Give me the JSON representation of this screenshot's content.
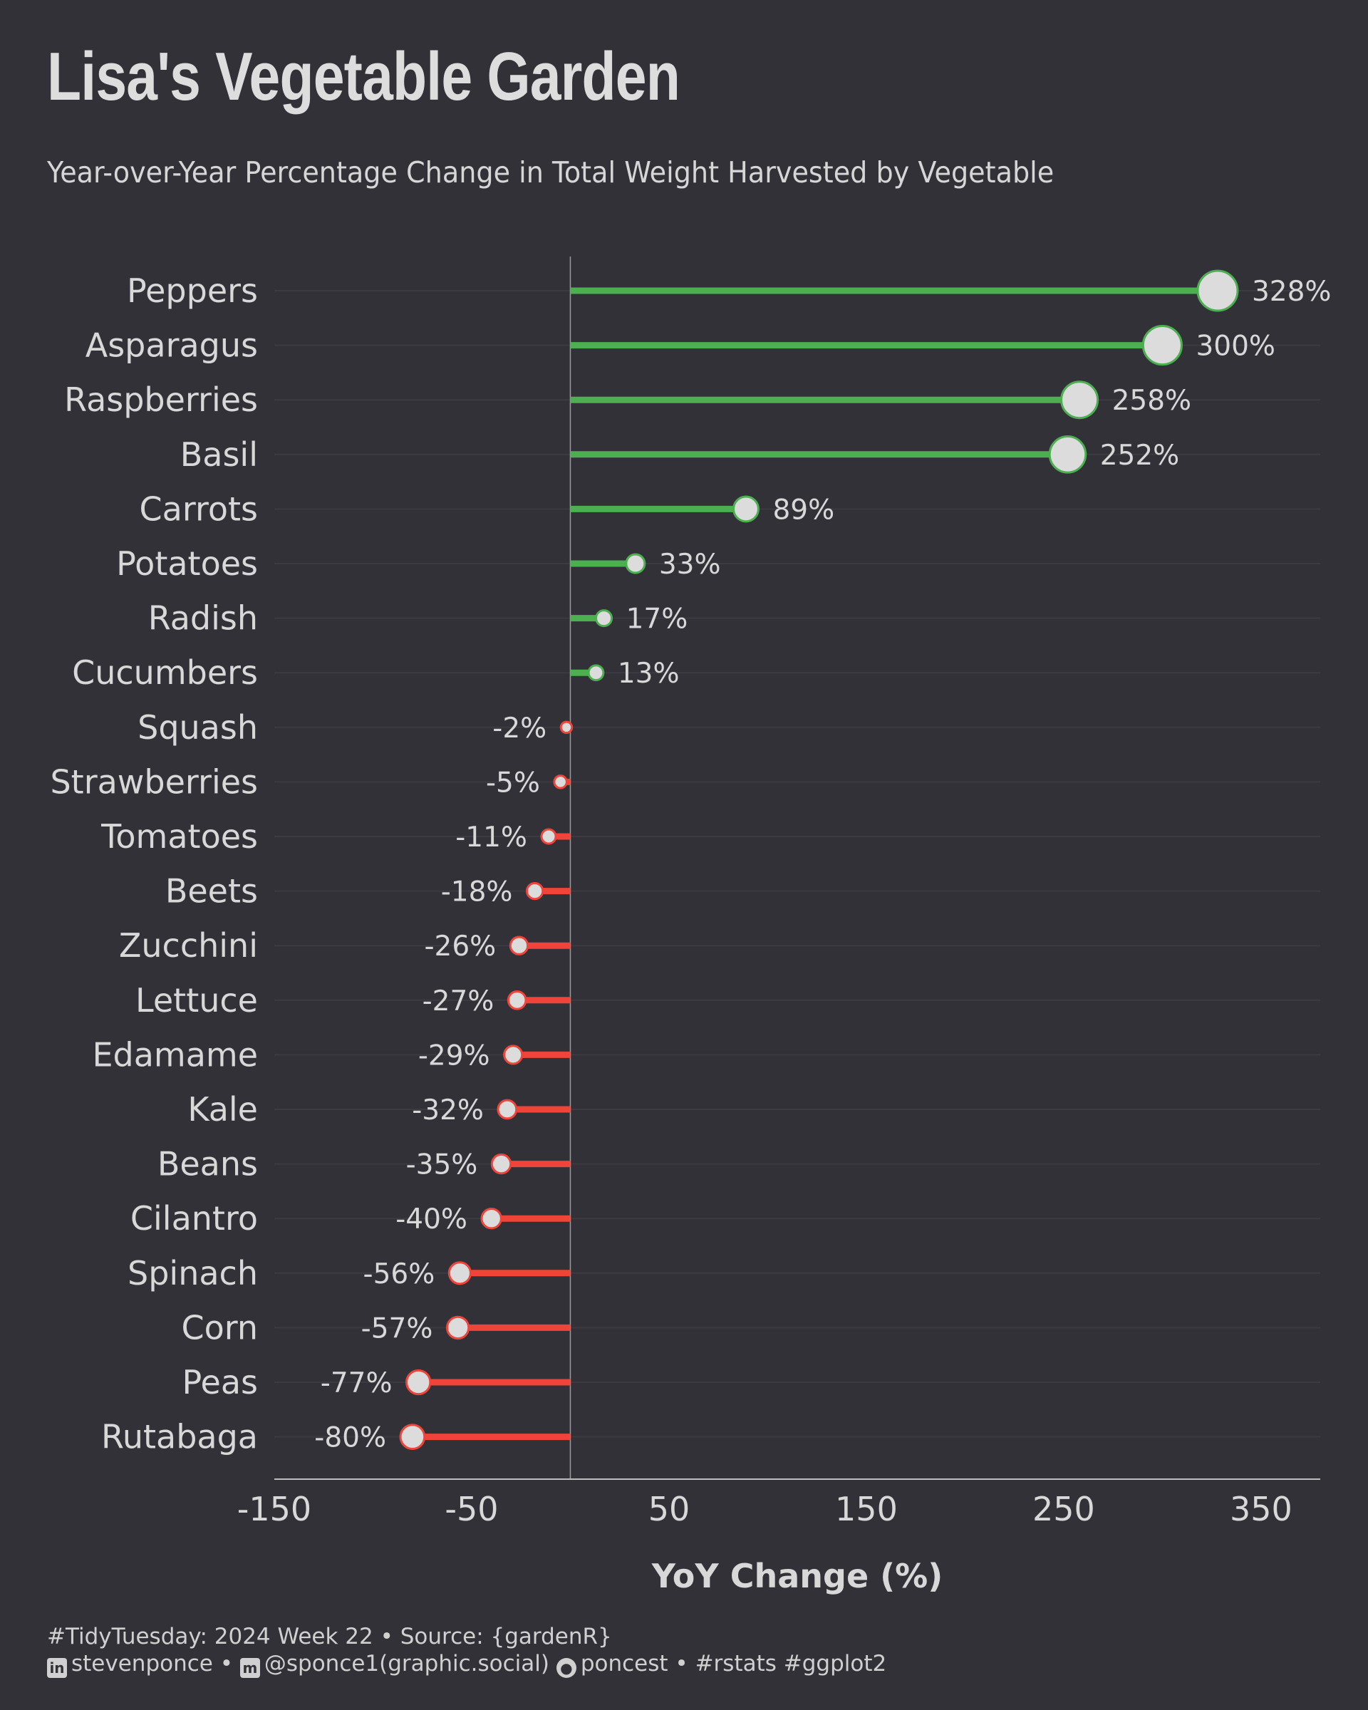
{
  "title": "Lisa's Vegetable Garden",
  "subtitle": "Year-over-Year Percentage Change in Total Weight Harvested by Vegetable",
  "footer": {
    "line1": "#TidyTuesday: 2024 Week 22 • Source: {gardenR}",
    "linkedin_handle": "stevenponce",
    "mastodon_handle": "@sponce1(graphic.social)",
    "github_handle": "poncest",
    "tags": "#rstats #ggplot2"
  },
  "colors": {
    "background": "#323137",
    "positive": "#4caf50",
    "negative": "#f0443a",
    "point_fill": "#dcdcdc",
    "text": "#d8d8d8"
  },
  "chart_data": {
    "type": "lollipop",
    "title": "Lisa's Vegetable Garden",
    "subtitle": "Year-over-Year Percentage Change in Total Weight Harvested by Vegetable",
    "xlabel": "YoY Change (%)",
    "ylabel": "",
    "xlim": [
      -150,
      380
    ],
    "xticks": [
      -150,
      -50,
      50,
      150,
      250,
      350
    ],
    "grid": "horizontal-major",
    "orientation": "horizontal",
    "categories": [
      "Peppers",
      "Asparagus",
      "Raspberries",
      "Basil",
      "Carrots",
      "Potatoes",
      "Radish",
      "Cucumbers",
      "Squash",
      "Strawberries",
      "Tomatoes",
      "Beets",
      "Zucchini",
      "Lettuce",
      "Edamame",
      "Kale",
      "Beans",
      "Cilantro",
      "Spinach",
      "Corn",
      "Peas",
      "Rutabaga"
    ],
    "values": [
      328,
      300,
      258,
      252,
      89,
      33,
      17,
      13,
      -2,
      -5,
      -11,
      -18,
      -26,
      -27,
      -29,
      -32,
      -35,
      -40,
      -56,
      -57,
      -77,
      -80
    ],
    "value_labels": [
      "328%",
      "300%",
      "258%",
      "252%",
      "89%",
      "33%",
      "17%",
      "13%",
      "-2%",
      "-5%",
      "-11%",
      "-18%",
      "-26%",
      "-27%",
      "-29%",
      "-32%",
      "-35%",
      "-40%",
      "-56%",
      "-57%",
      "-77%",
      "-80%"
    ]
  }
}
